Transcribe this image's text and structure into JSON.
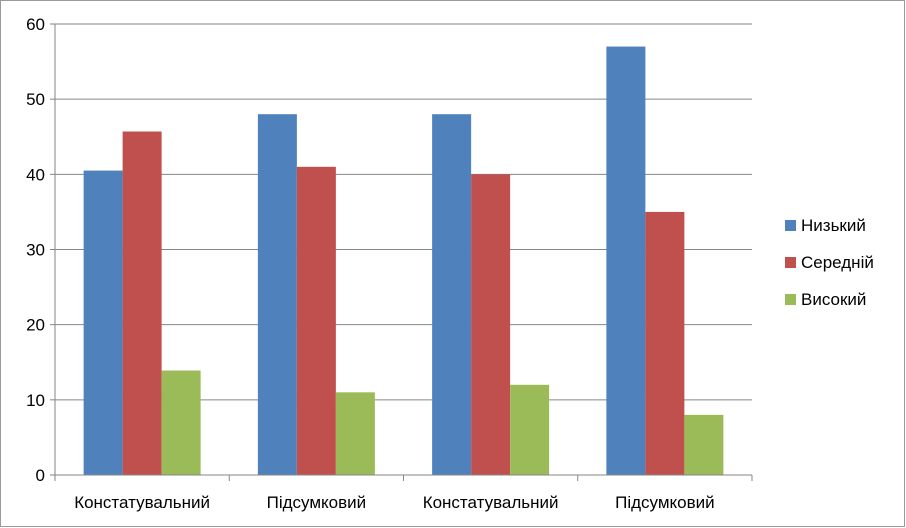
{
  "chart_data": {
    "type": "bar",
    "categories": [
      "Констатувальний",
      "Підсумковий",
      "Констатувальний",
      "Підсумковий"
    ],
    "series": [
      {
        "name": "Низький",
        "color": "#4F81BD",
        "values": [
          40.5,
          48,
          48,
          57
        ]
      },
      {
        "name": "Середній",
        "color": "#C0504D",
        "values": [
          45.7,
          41,
          40,
          35
        ]
      },
      {
        "name": "Високий",
        "color": "#9BBB59",
        "values": [
          13.9,
          11,
          12,
          8
        ]
      }
    ],
    "ylim": [
      0,
      60
    ],
    "yticks": [
      "0",
      "10",
      "20",
      "30",
      "40",
      "50",
      "60"
    ],
    "grid": true,
    "legend": "right"
  }
}
